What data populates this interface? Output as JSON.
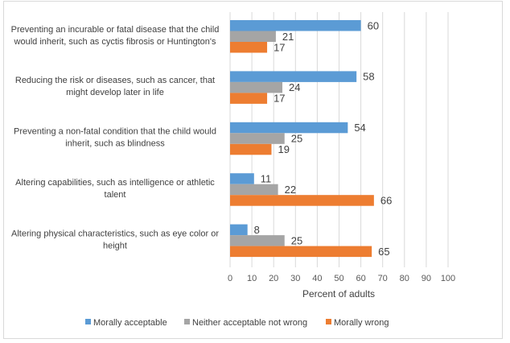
{
  "chart_data": {
    "type": "bar",
    "orientation": "horizontal",
    "categories": [
      [
        "Preventing an incurable or fatal disease that the child",
        "would inherit, such as cyctis fibrosis or Huntington's"
      ],
      [
        "Reducing the risk or diseases, such as cancer, that",
        "might develop later in life"
      ],
      [
        "Preventing a non-fatal condition that the child would",
        "inherit, such as blindness"
      ],
      [
        "Altering capabilities, such as intelligence or athletic",
        "talent"
      ],
      [
        "Altering physical characteristics, such as eye color or",
        "height"
      ]
    ],
    "series": [
      {
        "name": "Morally acceptable",
        "color": "#5b9bd5",
        "values": [
          60,
          58,
          54,
          11,
          8
        ]
      },
      {
        "name": "Neither acceptable not wrong",
        "color": "#a5a5a5",
        "values": [
          21,
          24,
          25,
          22,
          25
        ]
      },
      {
        "name": "Morally wrong",
        "color": "#ed7d31",
        "values": [
          17,
          17,
          19,
          66,
          65
        ]
      }
    ],
    "xlabel": "Percent of adults",
    "xlim": [
      0,
      100
    ],
    "xticks": [
      "0",
      "10",
      "20",
      "30",
      "40",
      "50",
      "60",
      "70",
      "80",
      "90",
      "100"
    ],
    "grid": true,
    "legend": "bottom"
  }
}
